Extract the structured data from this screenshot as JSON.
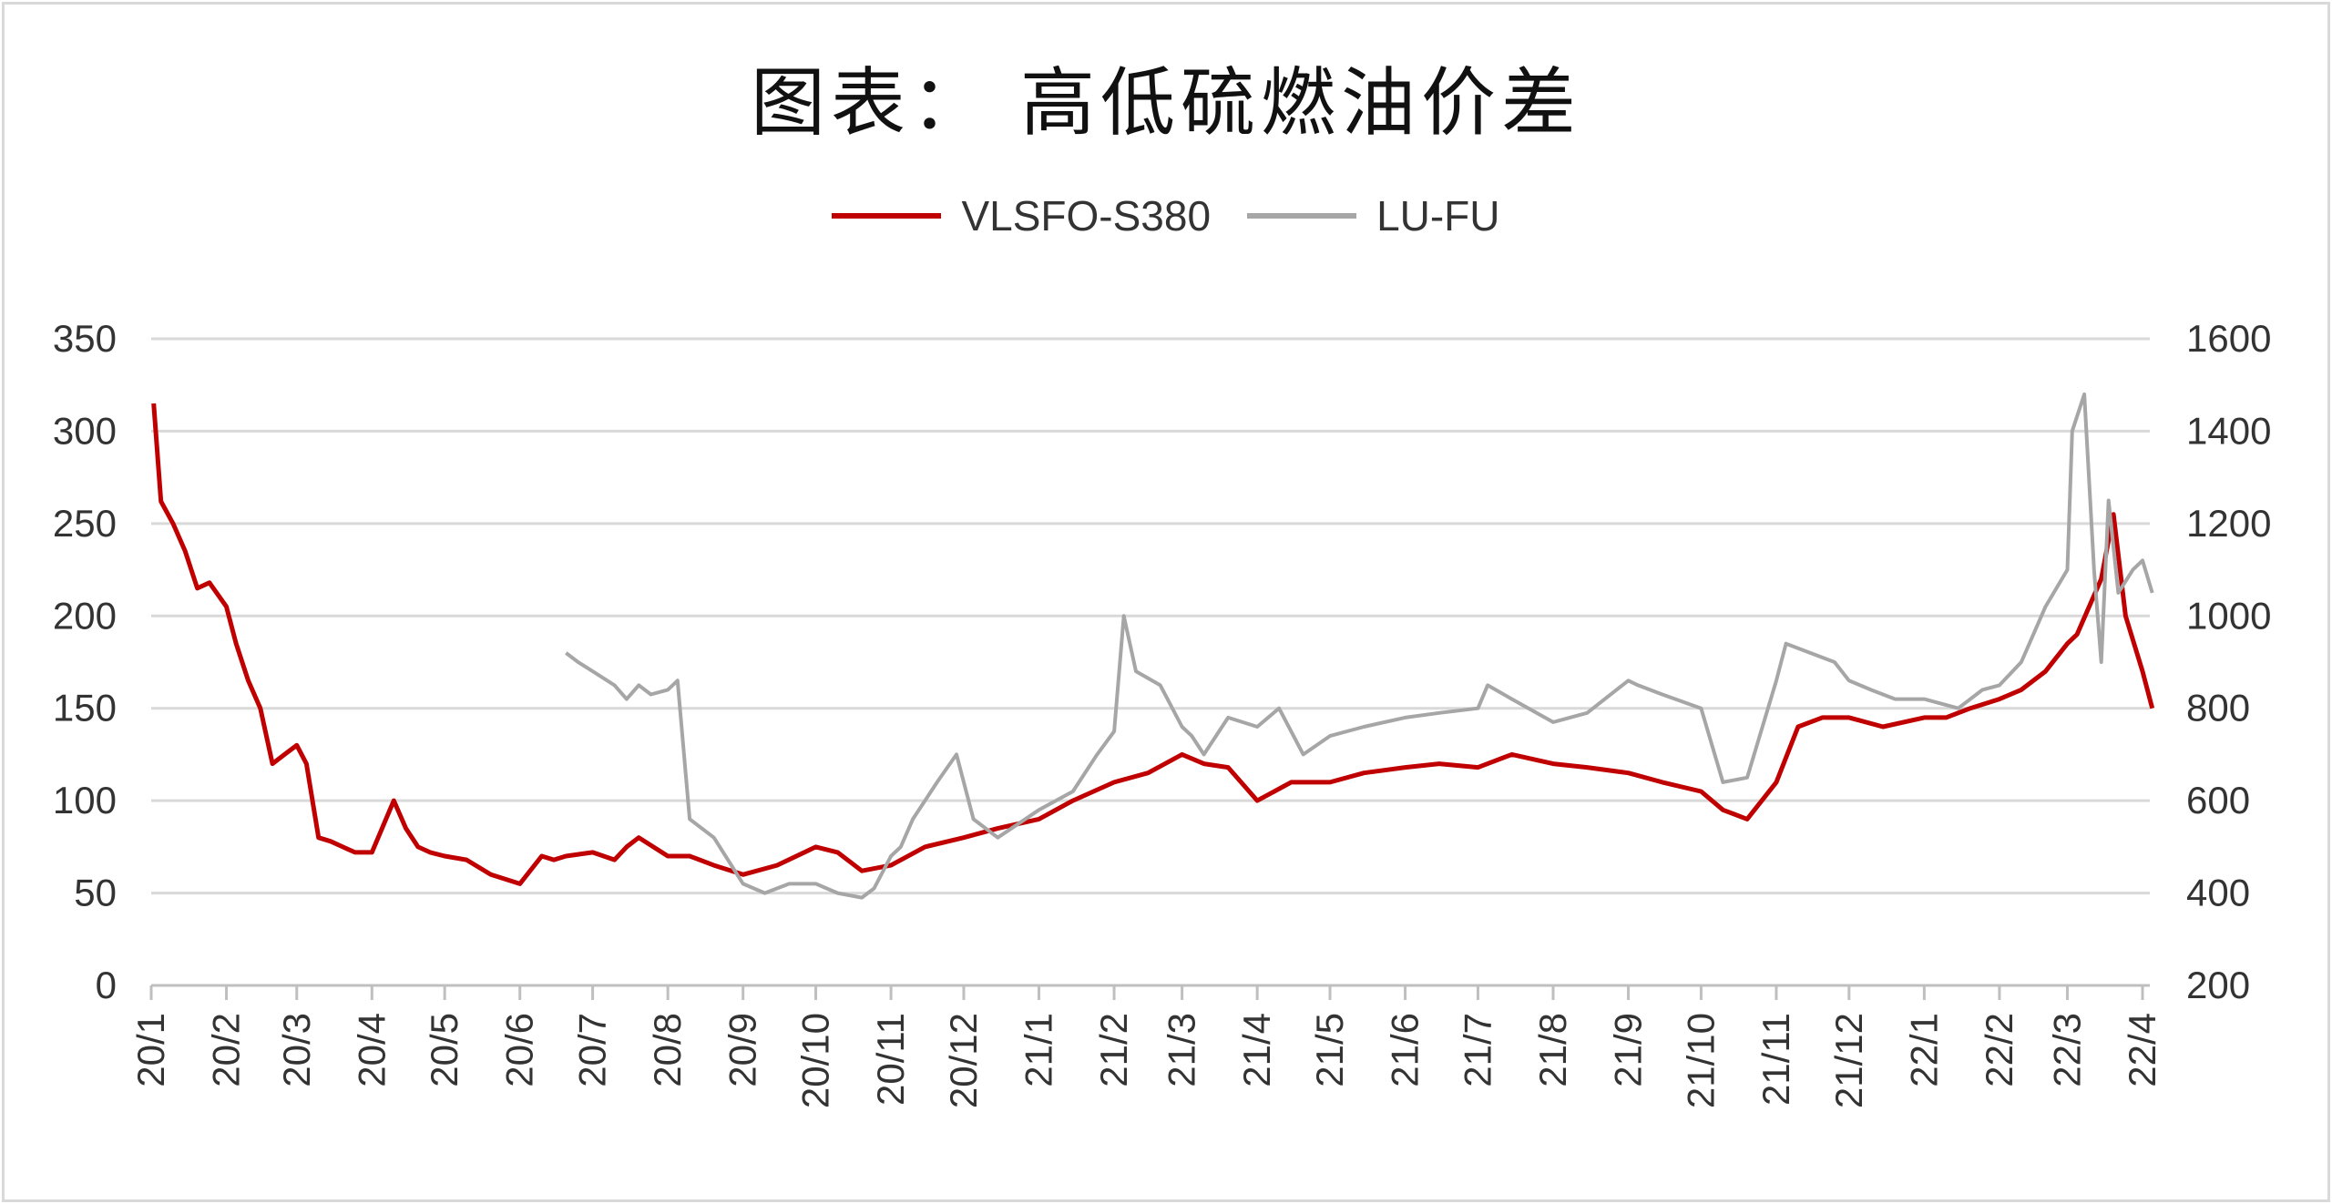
{
  "title": "图表： 高低硫燃油价差",
  "legend": [
    {
      "name": "VLSFO-S380",
      "color": "#c00000"
    },
    {
      "name": "LU-FU",
      "color": "#a6a6a6"
    }
  ],
  "chart_data": {
    "type": "line",
    "title": "图表： 高低硫燃油价差",
    "x_tick_labels": [
      "20/1",
      "20/2",
      "20/3",
      "20/4",
      "20/5",
      "20/6",
      "20/7",
      "20/8",
      "20/9",
      "20/10",
      "20/11",
      "20/12",
      "21/1",
      "21/2",
      "21/3",
      "21/4",
      "21/5",
      "21/6",
      "21/7",
      "21/8",
      "21/9",
      "21/10",
      "21/11",
      "21/12",
      "22/1",
      "22/2",
      "22/3",
      "22/4"
    ],
    "y_left": {
      "ticks": [
        0,
        50,
        100,
        150,
        200,
        250,
        300,
        350
      ],
      "ylim": [
        0,
        350
      ]
    },
    "y_right": {
      "ticks": [
        200,
        400,
        600,
        800,
        1000,
        1200,
        1400,
        1600
      ],
      "ylim": [
        200,
        1600
      ]
    },
    "grid": "horizontal",
    "legend_position": "top",
    "series": [
      {
        "name": "VLSFO-S380",
        "axis": "left",
        "color": "#c00000",
        "x": [
          "2020-01-02",
          "2020-01-05",
          "2020-01-10",
          "2020-01-15",
          "2020-01-20",
          "2020-01-25",
          "2020-02-01",
          "2020-02-05",
          "2020-02-10",
          "2020-02-15",
          "2020-02-20",
          "2020-02-25",
          "2020-03-01",
          "2020-03-05",
          "2020-03-10",
          "2020-03-15",
          "2020-03-20",
          "2020-03-25",
          "2020-04-01",
          "2020-04-10",
          "2020-04-15",
          "2020-04-20",
          "2020-04-25",
          "2020-05-01",
          "2020-05-10",
          "2020-05-20",
          "2020-06-01",
          "2020-06-10",
          "2020-06-15",
          "2020-06-20",
          "2020-07-01",
          "2020-07-10",
          "2020-07-15",
          "2020-07-20",
          "2020-08-01",
          "2020-08-10",
          "2020-08-20",
          "2020-09-01",
          "2020-09-15",
          "2020-10-01",
          "2020-10-10",
          "2020-10-20",
          "2020-11-01",
          "2020-11-15",
          "2020-12-01",
          "2020-12-15",
          "2021-01-01",
          "2021-01-15",
          "2021-02-01",
          "2021-02-15",
          "2021-03-01",
          "2021-03-10",
          "2021-03-20",
          "2021-04-01",
          "2021-04-15",
          "2021-05-01",
          "2021-05-15",
          "2021-06-01",
          "2021-06-15",
          "2021-07-01",
          "2021-07-15",
          "2021-08-01",
          "2021-08-15",
          "2021-09-01",
          "2021-09-15",
          "2021-10-01",
          "2021-10-10",
          "2021-10-20",
          "2021-11-01",
          "2021-11-10",
          "2021-11-20",
          "2021-12-01",
          "2021-12-15",
          "2022-01-01",
          "2022-01-10",
          "2022-01-20",
          "2022-02-01",
          "2022-02-10",
          "2022-02-20",
          "2022-03-01",
          "2022-03-05",
          "2022-03-10",
          "2022-03-15",
          "2022-03-20",
          "2022-03-25",
          "2022-04-01",
          "2022-04-05"
        ],
        "values": [
          315,
          262,
          250,
          235,
          215,
          218,
          205,
          185,
          165,
          150,
          120,
          125,
          130,
          120,
          80,
          78,
          75,
          72,
          72,
          100,
          85,
          75,
          72,
          70,
          68,
          60,
          55,
          70,
          68,
          70,
          72,
          68,
          75,
          80,
          70,
          70,
          65,
          60,
          65,
          75,
          72,
          62,
          65,
          75,
          80,
          85,
          90,
          100,
          110,
          115,
          125,
          120,
          118,
          100,
          110,
          110,
          115,
          118,
          120,
          118,
          125,
          120,
          118,
          115,
          110,
          105,
          95,
          90,
          110,
          140,
          145,
          145,
          140,
          145,
          145,
          150,
          155,
          160,
          170,
          185,
          190,
          205,
          220,
          255,
          200,
          170,
          150
        ]
      },
      {
        "name": "LU-FU",
        "axis": "right",
        "color": "#a6a6a6",
        "x": [
          "2020-06-20",
          "2020-06-25",
          "2020-07-01",
          "2020-07-10",
          "2020-07-15",
          "2020-07-20",
          "2020-07-25",
          "2020-08-01",
          "2020-08-05",
          "2020-08-10",
          "2020-08-20",
          "2020-09-01",
          "2020-09-10",
          "2020-09-20",
          "2020-10-01",
          "2020-10-10",
          "2020-10-20",
          "2020-10-25",
          "2020-11-01",
          "2020-11-05",
          "2020-11-10",
          "2020-11-20",
          "2020-11-28",
          "2020-12-05",
          "2020-12-15",
          "2021-01-01",
          "2021-01-15",
          "2021-01-25",
          "2021-02-01",
          "2021-02-05",
          "2021-02-10",
          "2021-02-20",
          "2021-03-01",
          "2021-03-05",
          "2021-03-10",
          "2021-03-20",
          "2021-04-01",
          "2021-04-10",
          "2021-04-20",
          "2021-05-01",
          "2021-05-15",
          "2021-06-01",
          "2021-06-15",
          "2021-07-01",
          "2021-07-05",
          "2021-07-15",
          "2021-08-01",
          "2021-08-15",
          "2021-09-01",
          "2021-09-05",
          "2021-09-15",
          "2021-10-01",
          "2021-10-10",
          "2021-10-20",
          "2021-11-01",
          "2021-11-05",
          "2021-11-15",
          "2021-11-25",
          "2021-12-01",
          "2021-12-10",
          "2021-12-20",
          "2022-01-01",
          "2022-01-15",
          "2022-01-25",
          "2022-02-01",
          "2022-02-10",
          "2022-02-20",
          "2022-03-01",
          "2022-03-03",
          "2022-03-08",
          "2022-03-12",
          "2022-03-15",
          "2022-03-18",
          "2022-03-22",
          "2022-03-28",
          "2022-04-01",
          "2022-04-05"
        ],
        "values": [
          920,
          900,
          880,
          850,
          820,
          850,
          830,
          840,
          860,
          560,
          520,
          420,
          400,
          420,
          420,
          400,
          390,
          410,
          480,
          500,
          560,
          640,
          700,
          560,
          520,
          580,
          620,
          700,
          750,
          1000,
          880,
          850,
          760,
          740,
          700,
          780,
          760,
          800,
          700,
          740,
          760,
          780,
          790,
          800,
          850,
          820,
          770,
          790,
          860,
          850,
          830,
          800,
          640,
          650,
          860,
          940,
          920,
          900,
          860,
          840,
          820,
          820,
          800,
          840,
          850,
          900,
          1020,
          1100,
          1400,
          1480,
          1100,
          900,
          1250,
          1050,
          1100,
          1120,
          1050
        ]
      }
    ]
  }
}
